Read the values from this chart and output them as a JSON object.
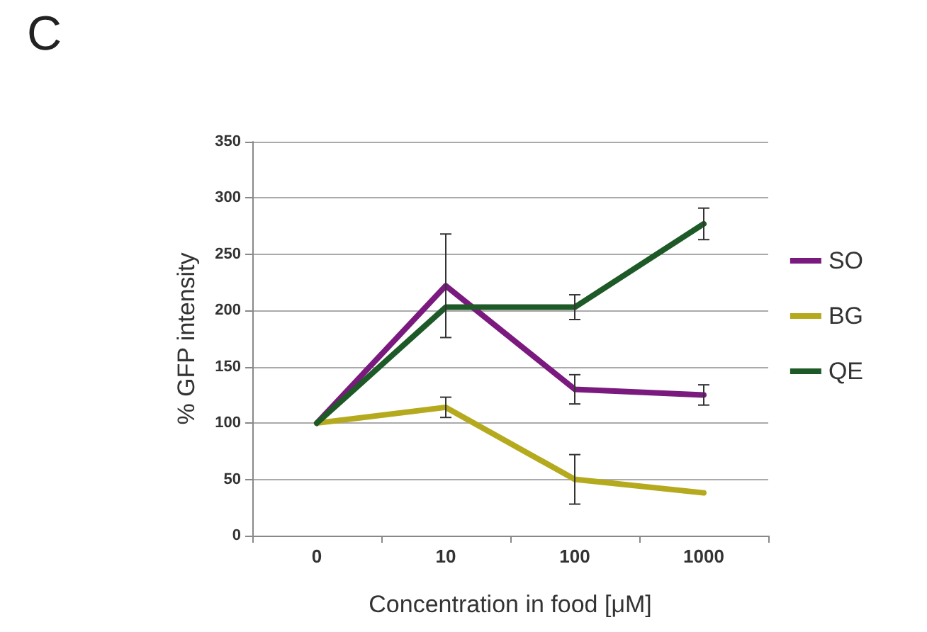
{
  "chart_data": {
    "type": "line",
    "title": "C",
    "xlabel": "Concentration in food [μM]",
    "ylabel": "% GFP intensity",
    "categories": [
      "0",
      "10",
      "100",
      "1000"
    ],
    "series": [
      {
        "name": "SO",
        "color": "#7b1a7e",
        "values": [
          100,
          222,
          130,
          125
        ],
        "errors": [
          null,
          46,
          13,
          9
        ]
      },
      {
        "name": "BG",
        "color": "#b5aa1e",
        "values": [
          100,
          114,
          50,
          38
        ],
        "errors": [
          null,
          9,
          22,
          null
        ]
      },
      {
        "name": "QE",
        "color": "#1e5a28",
        "values": [
          100,
          203,
          203,
          277
        ],
        "errors": [
          null,
          null,
          11,
          14
        ]
      }
    ],
    "ylim": [
      0,
      350
    ],
    "yticks": [
      0,
      50,
      100,
      150,
      200,
      250,
      300,
      350
    ],
    "grid": "y",
    "legend": "right",
    "marker": "none",
    "line_style": "solid"
  }
}
